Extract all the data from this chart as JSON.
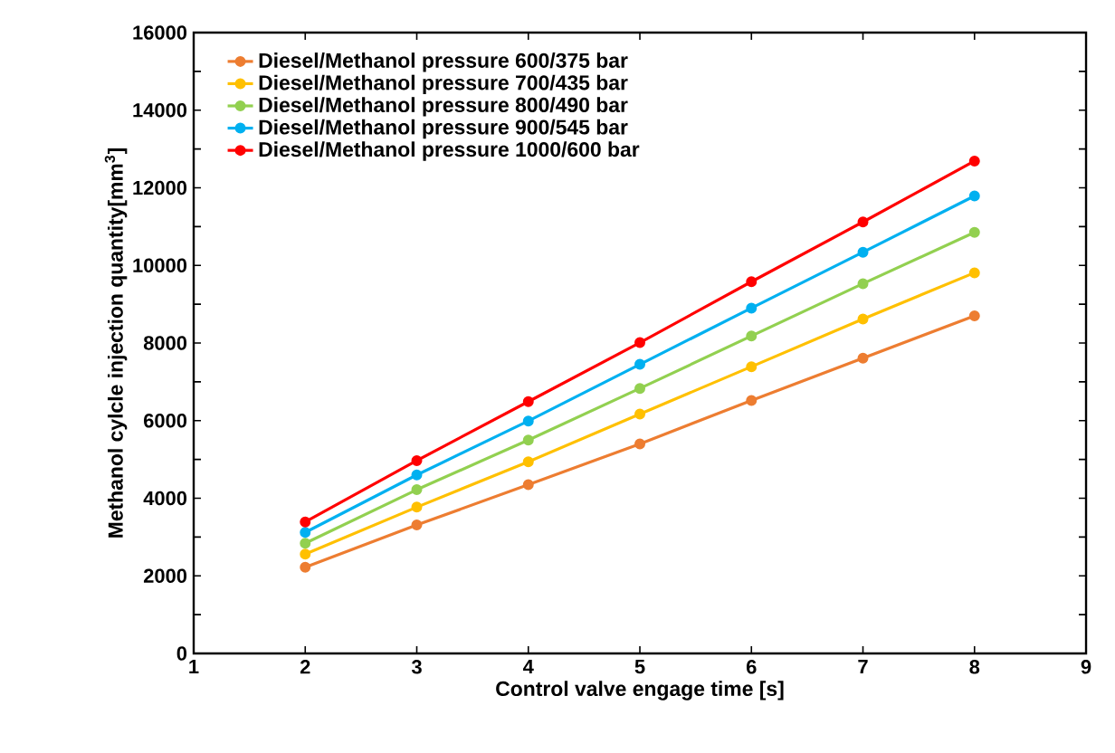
{
  "chart_data": {
    "type": "line",
    "xlabel": "Control valve engage time [s]",
    "ylabel": "Methanol cylcle injection quantity[mm$^{3}$]",
    "x": [
      2,
      3,
      4,
      5,
      6,
      7,
      8
    ],
    "series": [
      {
        "name": "Diesel/Methanol pressure 600/375 bar",
        "color": "#ed7d31",
        "values": [
          2220,
          3310,
          4350,
          5400,
          6520,
          7610,
          8700
        ]
      },
      {
        "name": "Diesel/Methanol pressure 700/435 bar",
        "color": "#ffc000",
        "values": [
          2560,
          3770,
          4940,
          6170,
          7390,
          8620,
          9810
        ]
      },
      {
        "name": "Diesel/Methanol pressure 800/490 bar",
        "color": "#92d050",
        "values": [
          2840,
          4220,
          5500,
          6830,
          8180,
          9530,
          10850
        ]
      },
      {
        "name": "Diesel/Methanol pressure 900/545 bar",
        "color": "#00b0f0",
        "values": [
          3120,
          4600,
          5990,
          7450,
          8900,
          10340,
          11790
        ]
      },
      {
        "name": "Diesel/Methanol pressure 1000/600 bar",
        "color": "#ff0000",
        "values": [
          3390,
          4970,
          6490,
          8010,
          9580,
          11120,
          12690
        ]
      }
    ],
    "xlim": [
      1,
      9
    ],
    "xticks": [
      1,
      2,
      3,
      4,
      5,
      6,
      7,
      8,
      9
    ],
    "ylim": [
      0,
      16000
    ],
    "yticks": [
      0,
      {
        "value": 1000,
        "label": null
      },
      2000,
      {
        "value": 3000,
        "label": null
      },
      4000,
      {
        "value": 5000,
        "label": null
      },
      6000,
      {
        "value": 7000,
        "label": null
      },
      8000,
      {
        "value": 9000,
        "label": null
      },
      10000,
      {
        "value": 11000,
        "label": null
      },
      12000,
      {
        "value": 13000,
        "label": null
      },
      14000,
      {
        "value": 15000,
        "label": null
      },
      16000
    ],
    "grid": false,
    "legend": "top left",
    "marker": "circle",
    "line_style": "solid"
  }
}
